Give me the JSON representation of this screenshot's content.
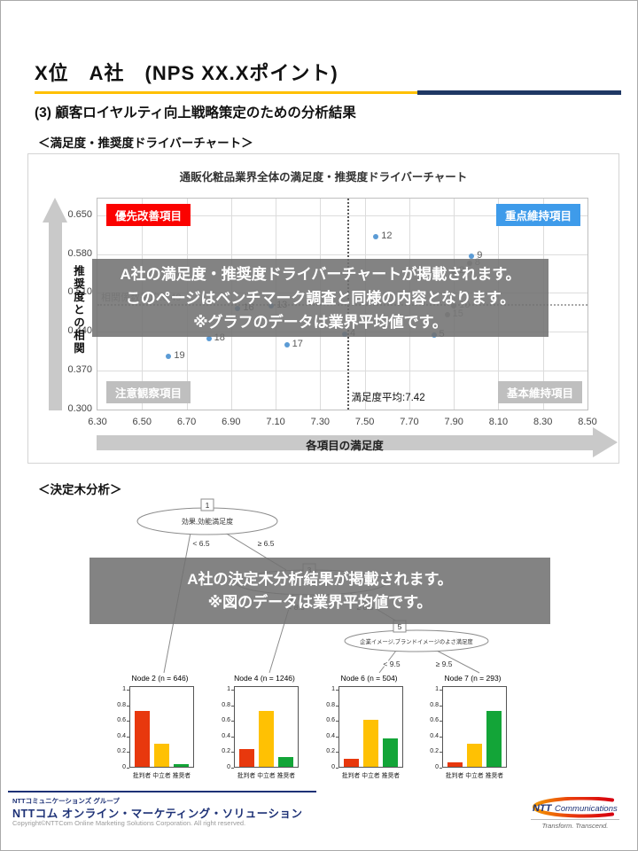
{
  "slide": {
    "title": "X位　A社　(NPS XX.Xポイント)",
    "subtitle": "(3) 顧客ロイヤルティ向上戦略策定のための分析結果",
    "section1_heading": "＜満足度・推奨度ドライバーチャート＞",
    "section2_heading": "＜決定木分析＞"
  },
  "overlays": {
    "driver": [
      "A社の満足度・推奨度ドライバーチャートが掲載されます。",
      "このページはベンチマーク調査と同様の内容となります。",
      "※グラフのデータは業界平均値です。"
    ],
    "tree": [
      "A社の決定木分析結果が掲載されます。",
      "※図のデータは業界平均値です。"
    ]
  },
  "footer": {
    "group": "NTTコミュニケーションズ グループ",
    "company": "NTTコム オンライン・マーケティング・ソリューション",
    "copyright": "Copyright©NTTCom Online Marketing Solutions Corporation. All right reserved.",
    "logo_ntt": "NTT",
    "logo_comm": "Communications",
    "logo_tagline": "Transform. Transcend."
  },
  "colors": {
    "accent_yellow": "#FFC000",
    "accent_navy": "#1F3864",
    "quad_red": "#FB0200",
    "quad_blue": "#3E9BEA",
    "quad_gray": "#BFBFBF",
    "point_blue": "#5B9BD5",
    "point_gray": "#a8a8a8",
    "bar_red": "#E8380D",
    "bar_yellow": "#FFC103",
    "bar_green": "#13A538"
  },
  "chart_data": [
    {
      "type": "scatter",
      "title": "通販化粧品業界全体の満足度・推奨度ドライバーチャート",
      "xlabel": "各項目の満足度",
      "ylabel": "推奨度との相関",
      "xlim": [
        6.3,
        8.5
      ],
      "ylim": [
        0.3,
        0.65
      ],
      "xticks": [
        "6.30",
        "6.50",
        "6.70",
        "6.90",
        "7.10",
        "7.30",
        "7.50",
        "7.70",
        "7.90",
        "8.10",
        "8.30",
        "8.50"
      ],
      "yticks": [
        "0.650",
        "0.580",
        "0.510",
        "0.440",
        "0.370",
        "0.300"
      ],
      "x_mean": 7.42,
      "x_mean_label": "満足度平均:7.42",
      "y_mean": 0.49,
      "y_mean_label": "相関係数平均:0.49",
      "quadrant_labels": {
        "top_left": "優先改善項目",
        "top_right": "重点維持項目",
        "bottom_left": "注意観察項目",
        "bottom_right": "基本維持項目"
      },
      "points": [
        {
          "label": "12",
          "x": 7.55,
          "y": 0.612,
          "dim": false
        },
        {
          "label": "9",
          "x": 7.98,
          "y": 0.576,
          "dim": false
        },
        {
          "label": "8",
          "x": 7.97,
          "y": 0.563,
          "dim": true
        },
        {
          "label": "2",
          "x": 7.9,
          "y": 0.549,
          "dim": true
        },
        {
          "label": "10",
          "x": 7.9,
          "y": 0.487,
          "dim": true
        },
        {
          "label": "13",
          "x": 7.08,
          "y": 0.487,
          "dim": false
        },
        {
          "label": "16",
          "x": 6.93,
          "y": 0.482,
          "dim": false
        },
        {
          "label": "15",
          "x": 7.87,
          "y": 0.471,
          "dim": true
        },
        {
          "label": "4",
          "x": 7.41,
          "y": 0.436,
          "dim": false
        },
        {
          "label": "5",
          "x": 7.81,
          "y": 0.434,
          "dim": false
        },
        {
          "label": "18",
          "x": 6.8,
          "y": 0.428,
          "dim": false
        },
        {
          "label": "17",
          "x": 7.15,
          "y": 0.416,
          "dim": false
        },
        {
          "label": "19",
          "x": 6.62,
          "y": 0.396,
          "dim": false
        }
      ]
    },
    {
      "type": "tree",
      "nodes": [
        {
          "num": "1",
          "label": "効果,効能満足度",
          "left_branch": "< 6.5",
          "right_branch": "≥ 6.5"
        },
        {
          "num": "3",
          "label": "",
          "left_branch": "< 8.5",
          "right_branch": "≥ 8.5"
        },
        {
          "num": "5",
          "label": "企業イメージ,ブランドイメージのよさ満足度",
          "left_branch": "< 9.5",
          "right_branch": "≥ 9.5"
        }
      ]
    },
    {
      "type": "bar",
      "yticks": [
        0,
        0.2,
        0.4,
        0.6,
        0.8,
        1
      ],
      "categories": [
        "批判者",
        "中立者",
        "推奨者"
      ],
      "ylim": [
        0,
        1
      ],
      "charts": [
        {
          "title": "Node 2 (n = 646)",
          "values": [
            0.72,
            0.3,
            0.03
          ]
        },
        {
          "title": "Node 4 (n = 1246)",
          "values": [
            0.23,
            0.72,
            0.12
          ]
        },
        {
          "title": "Node 6 (n = 504)",
          "values": [
            0.1,
            0.6,
            0.36
          ]
        },
        {
          "title": "Node 7 (n = 293)",
          "values": [
            0.06,
            0.3,
            0.72
          ]
        }
      ]
    }
  ]
}
